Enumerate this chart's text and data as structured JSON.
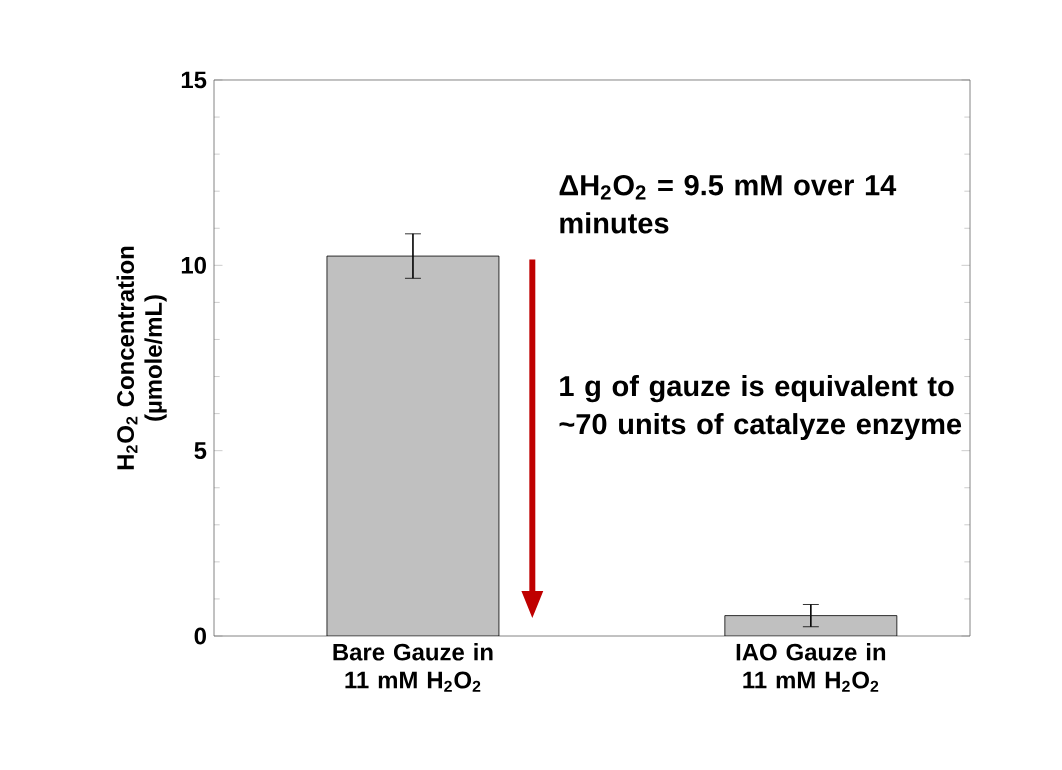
{
  "chart_data": {
    "type": "bar",
    "categories": [
      "Bare Gauze in 11 mM H$_{2}$O$_{2}$",
      "IAO Gauze in 11 mM H$_{2}$O$_{2}$"
    ],
    "values": [
      10.25,
      0.55
    ],
    "errors": [
      0.6,
      0.3
    ],
    "color": "#c0c0c0",
    "ylabel": "H$_{2}$O$_{2}$ Concentration (µmole/mL)",
    "ylim": [
      0,
      15
    ],
    "yticks": [
      0,
      5,
      10,
      15
    ],
    "grid": false,
    "annotations": [
      "ΔH$_{2}$O$_{2}$ = 9.5 mM over 14 minutes",
      "1 g of gauze is equivalent to ~70 units of catalyze enzyme"
    ]
  }
}
